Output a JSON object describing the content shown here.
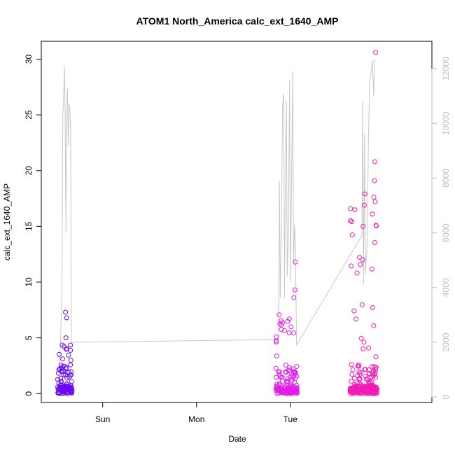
{
  "chart_data": {
    "type": "scatter",
    "title": "ATOM1 North_America calc_ext_1640_AMP",
    "xlabel": "Date",
    "ylabel": "calc_ext_1640_AMP",
    "x_ticks": [
      "Sun",
      "Mon",
      "Tue"
    ],
    "y_ticks": [
      "0",
      "5",
      "10",
      "15",
      "20",
      "25",
      "30"
    ],
    "y2_ticks": [
      "0",
      "2000",
      "4000",
      "6000",
      "8000",
      "10000",
      "12000"
    ],
    "y_range": [
      -0.8,
      31.6
    ],
    "y2_range": [
      -200,
      13000
    ],
    "x_range_hours": [
      -15.7,
      84.2
    ],
    "colors": {
      "line": "#c8c8c8",
      "axis": "#000000",
      "right_axis": "#bebebe"
    },
    "series": [
      {
        "kind": "line",
        "axis": "right",
        "points": [
          [
            -11,
            1200
          ],
          [
            -10.7,
            2400
          ],
          [
            -10.4,
            3800
          ],
          [
            -10.2,
            10300
          ],
          [
            -10.0,
            10900
          ],
          [
            -9.8,
            12100
          ],
          [
            -9.6,
            10200
          ],
          [
            -9.4,
            6000
          ],
          [
            -9.2,
            10400
          ],
          [
            -9.0,
            11300
          ],
          [
            -8.8,
            9200
          ],
          [
            -8.6,
            10700
          ],
          [
            -8.4,
            10600
          ],
          [
            -8.2,
            9800
          ],
          [
            -8.0,
            2000
          ],
          [
            45,
            2100
          ],
          [
            45.2,
            7900
          ],
          [
            45.4,
            3600
          ],
          [
            45.7,
            6200
          ],
          [
            46.0,
            10600
          ],
          [
            46.3,
            11100
          ],
          [
            46.5,
            3600
          ],
          [
            46.8,
            9300
          ],
          [
            47.0,
            10800
          ],
          [
            47.2,
            4400
          ],
          [
            47.5,
            6000
          ],
          [
            47.8,
            11600
          ],
          [
            48.0,
            4200
          ],
          [
            48.3,
            7800
          ],
          [
            48.6,
            11900
          ],
          [
            48.8,
            4800
          ],
          [
            49.1,
            6300
          ],
          [
            49.3,
            5400
          ],
          [
            49.6,
            1900
          ],
          [
            66.3,
            5900
          ],
          [
            66.5,
            10800
          ],
          [
            66.7,
            4100
          ],
          [
            67.0,
            9600
          ],
          [
            67.2,
            4500
          ],
          [
            67.6,
            5400
          ],
          [
            68.0,
            9700
          ],
          [
            68.3,
            11500
          ],
          [
            68.6,
            11800
          ],
          [
            69.0,
            12300
          ],
          [
            69.3,
            11000
          ],
          [
            69.5,
            12300
          ],
          [
            69.8,
            12300
          ]
        ]
      },
      {
        "kind": "scatter",
        "axis": "left",
        "groups": [
          {
            "x_start": -11.5,
            "x_end": -7.8,
            "count": 120,
            "ymax": 7.3,
            "color": "#6a0af0"
          },
          {
            "x_start": 44.3,
            "x_end": 49.8,
            "count": 160,
            "ymax": 11.8,
            "color": "#e11de6"
          },
          {
            "x_start": 63.3,
            "x_end": 70.2,
            "count": 240,
            "ymax": 30.6,
            "color": "#f21ab5"
          }
        ]
      }
    ],
    "highlight_points": [
      {
        "x": -9.5,
        "y": 7.3
      },
      {
        "x": -9.2,
        "y": 6.8
      },
      {
        "x": -9.4,
        "y": 5.0
      },
      {
        "x": 49.3,
        "y": 11.8
      },
      {
        "x": 49.2,
        "y": 9.3
      },
      {
        "x": 48.9,
        "y": 8.6
      },
      {
        "x": 69.8,
        "y": 30.6
      },
      {
        "x": 69.6,
        "y": 20.8
      },
      {
        "x": 69.5,
        "y": 19.1
      },
      {
        "x": 69.7,
        "y": 17.2
      },
      {
        "x": 66.9,
        "y": 16.9
      },
      {
        "x": 66.6,
        "y": 15.0
      },
      {
        "x": 69.9,
        "y": 15.1
      },
      {
        "x": 66.5,
        "y": 12.0
      }
    ]
  }
}
